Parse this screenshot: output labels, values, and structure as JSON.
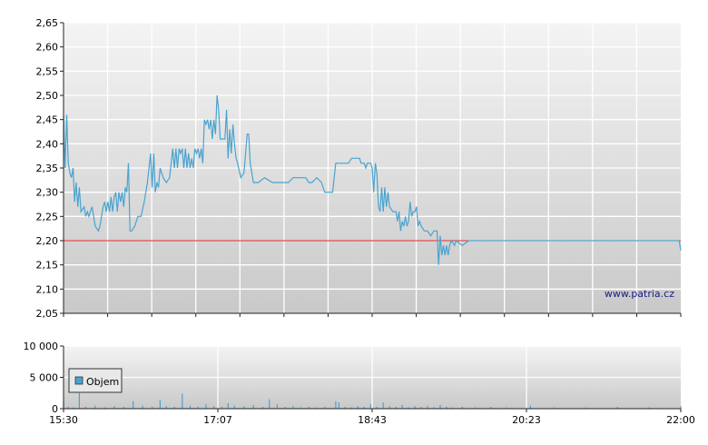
{
  "watermark": "www.patria.cz",
  "chart_data": [
    {
      "type": "line",
      "title": "",
      "xlabel": "",
      "ylabel": "",
      "ylim": [
        2.05,
        2.65
      ],
      "y_ticks": [
        "2,05",
        "2,10",
        "2,15",
        "2,20",
        "2,25",
        "2,30",
        "2,35",
        "2,40",
        "2,45",
        "2,50",
        "2,55",
        "2,60",
        "2,65"
      ],
      "reference_line": {
        "value": 2.2,
        "color": "#dd2222"
      },
      "colors": {
        "line": "#4aa3cf",
        "grid": "#ffffff",
        "bg_top": "#f2f2f2",
        "bg_bottom": "#c8c8c8"
      },
      "x_range": [
        "15:30",
        "22:00"
      ],
      "series": [
        {
          "points": [
            [
              "15:30",
              2.46
            ],
            [
              "15:31",
              2.35
            ],
            [
              "15:32",
              2.46
            ],
            [
              "15:33",
              2.36
            ],
            [
              "15:34",
              2.34
            ],
            [
              "15:35",
              2.33
            ],
            [
              "15:36",
              2.35
            ],
            [
              "15:37",
              2.28
            ],
            [
              "15:38",
              2.32
            ],
            [
              "15:39",
              2.27
            ],
            [
              "15:40",
              2.31
            ],
            [
              "15:41",
              2.26
            ],
            [
              "15:43",
              2.27
            ],
            [
              "15:44",
              2.25
            ],
            [
              "15:45",
              2.26
            ],
            [
              "15:46",
              2.25
            ],
            [
              "15:48",
              2.27
            ],
            [
              "15:50",
              2.23
            ],
            [
              "15:52",
              2.22
            ],
            [
              "15:53",
              2.23
            ],
            [
              "15:55",
              2.27
            ],
            [
              "15:56",
              2.28
            ],
            [
              "15:57",
              2.26
            ],
            [
              "15:58",
              2.28
            ],
            [
              "15:59",
              2.26
            ],
            [
              "16:00",
              2.29
            ],
            [
              "16:01",
              2.26
            ],
            [
              "16:02",
              2.29
            ],
            [
              "16:03",
              2.3
            ],
            [
              "16:04",
              2.26
            ],
            [
              "16:05",
              2.3
            ],
            [
              "16:06",
              2.28
            ],
            [
              "16:07",
              2.3
            ],
            [
              "16:08",
              2.27
            ],
            [
              "16:09",
              2.31
            ],
            [
              "16:10",
              2.3
            ],
            [
              "16:11",
              2.36
            ],
            [
              "16:12",
              2.22
            ],
            [
              "16:13",
              2.22
            ],
            [
              "16:15",
              2.23
            ],
            [
              "16:17",
              2.25
            ],
            [
              "16:19",
              2.25
            ],
            [
              "16:21",
              2.28
            ],
            [
              "16:23",
              2.32
            ],
            [
              "16:25",
              2.38
            ],
            [
              "16:26",
              2.31
            ],
            [
              "16:27",
              2.38
            ],
            [
              "16:28",
              2.3
            ],
            [
              "16:29",
              2.32
            ],
            [
              "16:30",
              2.31
            ],
            [
              "16:31",
              2.35
            ],
            [
              "16:33",
              2.33
            ],
            [
              "16:35",
              2.32
            ],
            [
              "16:37",
              2.33
            ],
            [
              "16:38",
              2.36
            ],
            [
              "16:39",
              2.39
            ],
            [
              "16:40",
              2.35
            ],
            [
              "16:41",
              2.39
            ],
            [
              "16:42",
              2.35
            ],
            [
              "16:43",
              2.39
            ],
            [
              "16:44",
              2.38
            ],
            [
              "16:45",
              2.39
            ],
            [
              "16:46",
              2.35
            ],
            [
              "16:47",
              2.39
            ],
            [
              "16:48",
              2.35
            ],
            [
              "16:49",
              2.38
            ],
            [
              "16:50",
              2.35
            ],
            [
              "16:51",
              2.37
            ],
            [
              "16:52",
              2.35
            ],
            [
              "16:53",
              2.39
            ],
            [
              "16:54",
              2.38
            ],
            [
              "16:55",
              2.39
            ],
            [
              "16:56",
              2.37
            ],
            [
              "16:57",
              2.39
            ],
            [
              "16:58",
              2.36
            ],
            [
              "16:59",
              2.45
            ],
            [
              "17:00",
              2.44
            ],
            [
              "17:01",
              2.45
            ],
            [
              "17:02",
              2.43
            ],
            [
              "17:03",
              2.45
            ],
            [
              "17:04",
              2.41
            ],
            [
              "17:05",
              2.45
            ],
            [
              "17:06",
              2.42
            ],
            [
              "17:07",
              2.5
            ],
            [
              "17:08",
              2.47
            ],
            [
              "17:09",
              2.41
            ],
            [
              "17:10",
              2.41
            ],
            [
              "17:11",
              2.41
            ],
            [
              "17:12",
              2.41
            ],
            [
              "17:13",
              2.47
            ],
            [
              "17:14",
              2.37
            ],
            [
              "17:15",
              2.43
            ],
            [
              "17:16",
              2.38
            ],
            [
              "17:17",
              2.44
            ],
            [
              "17:18",
              2.4
            ],
            [
              "17:19",
              2.37
            ],
            [
              "17:20",
              2.36
            ],
            [
              "17:22",
              2.33
            ],
            [
              "17:24",
              2.34
            ],
            [
              "17:26",
              2.42
            ],
            [
              "17:27",
              2.42
            ],
            [
              "17:28",
              2.36
            ],
            [
              "17:30",
              2.32
            ],
            [
              "17:33",
              2.32
            ],
            [
              "17:37",
              2.33
            ],
            [
              "17:42",
              2.32
            ],
            [
              "17:48",
              2.32
            ],
            [
              "17:52",
              2.32
            ],
            [
              "17:55",
              2.33
            ],
            [
              "18:03",
              2.33
            ],
            [
              "18:05",
              2.32
            ],
            [
              "18:07",
              2.32
            ],
            [
              "18:10",
              2.33
            ],
            [
              "18:13",
              2.32
            ],
            [
              "18:15",
              2.3
            ],
            [
              "18:17",
              2.3
            ],
            [
              "18:20",
              2.3
            ],
            [
              "18:22",
              2.36
            ],
            [
              "18:30",
              2.36
            ],
            [
              "18:32",
              2.37
            ],
            [
              "18:37",
              2.37
            ],
            [
              "18:38",
              2.36
            ],
            [
              "18:40",
              2.36
            ],
            [
              "18:41",
              2.35
            ],
            [
              "18:42",
              2.36
            ],
            [
              "18:44",
              2.36
            ],
            [
              "18:45",
              2.35
            ],
            [
              "18:46",
              2.3
            ],
            [
              "18:47",
              2.36
            ],
            [
              "18:48",
              2.34
            ],
            [
              "18:49",
              2.27
            ],
            [
              "18:50",
              2.26
            ],
            [
              "18:51",
              2.31
            ],
            [
              "18:52",
              2.26
            ],
            [
              "18:53",
              2.31
            ],
            [
              "18:54",
              2.27
            ],
            [
              "18:55",
              2.3
            ],
            [
              "18:56",
              2.27
            ],
            [
              "18:58",
              2.26
            ],
            [
              "19:00",
              2.26
            ],
            [
              "19:01",
              2.24
            ],
            [
              "19:02",
              2.26
            ],
            [
              "19:03",
              2.22
            ],
            [
              "19:04",
              2.24
            ],
            [
              "19:05",
              2.23
            ],
            [
              "19:06",
              2.25
            ],
            [
              "19:07",
              2.23
            ],
            [
              "19:08",
              2.24
            ],
            [
              "19:09",
              2.28
            ],
            [
              "19:10",
              2.25
            ],
            [
              "19:11",
              2.26
            ],
            [
              "19:12",
              2.26
            ],
            [
              "19:13",
              2.27
            ],
            [
              "19:14",
              2.23
            ],
            [
              "19:15",
              2.24
            ],
            [
              "19:16",
              2.23
            ],
            [
              "19:18",
              2.22
            ],
            [
              "19:20",
              2.22
            ],
            [
              "19:22",
              2.21
            ],
            [
              "19:24",
              2.22
            ],
            [
              "19:26",
              2.22
            ],
            [
              "19:27",
              2.15
            ],
            [
              "19:28",
              2.21
            ],
            [
              "19:29",
              2.17
            ],
            [
              "19:30",
              2.19
            ],
            [
              "19:31",
              2.17
            ],
            [
              "19:32",
              2.19
            ],
            [
              "19:33",
              2.17
            ],
            [
              "19:34",
              2.19
            ],
            [
              "19:35",
              2.2
            ],
            [
              "19:37",
              2.19
            ],
            [
              "19:38",
              2.2
            ],
            [
              "19:42",
              2.19
            ],
            [
              "19:46",
              2.2
            ],
            [
              "20:00",
              2.2
            ],
            [
              "21:59",
              2.2
            ],
            [
              "22:00",
              2.18
            ]
          ]
        }
      ]
    },
    {
      "type": "bar",
      "title": "",
      "xlabel": "",
      "ylabel": "",
      "ylim": [
        0,
        10000
      ],
      "y_ticks": [
        "0",
        "5 000",
        "10 000"
      ],
      "x_ticks": [
        "15:30",
        "17:07",
        "18:43",
        "20:23",
        "22:00"
      ],
      "legend": {
        "label": "Objem",
        "placement": "top-left",
        "swatch_color": "#4aa3cf"
      },
      "series": [
        {
          "name": "Objem",
          "color": "#4aa3cf",
          "points": [
            [
              "15:30",
              1200
            ],
            [
              "15:33",
              300
            ],
            [
              "15:36",
              200
            ],
            [
              "15:40",
              2500
            ],
            [
              "15:44",
              300
            ],
            [
              "15:50",
              500
            ],
            [
              "15:56",
              200
            ],
            [
              "16:02",
              400
            ],
            [
              "16:08",
              300
            ],
            [
              "16:14",
              1200
            ],
            [
              "16:20",
              500
            ],
            [
              "16:26",
              300
            ],
            [
              "16:31",
              1400
            ],
            [
              "16:35",
              400
            ],
            [
              "16:40",
              300
            ],
            [
              "16:45",
              2400
            ],
            [
              "16:50",
              500
            ],
            [
              "16:55",
              300
            ],
            [
              "17:00",
              700
            ],
            [
              "17:05",
              400
            ],
            [
              "17:10",
              300
            ],
            [
              "17:14",
              900
            ],
            [
              "17:18",
              500
            ],
            [
              "17:24",
              400
            ],
            [
              "17:30",
              600
            ],
            [
              "17:36",
              300
            ],
            [
              "17:40",
              1500
            ],
            [
              "17:45",
              700
            ],
            [
              "17:50",
              300
            ],
            [
              "17:55",
              400
            ],
            [
              "18:00",
              200
            ],
            [
              "18:05",
              300
            ],
            [
              "18:10",
              200
            ],
            [
              "18:15",
              300
            ],
            [
              "18:22",
              1200
            ],
            [
              "18:24",
              1000
            ],
            [
              "18:28",
              300
            ],
            [
              "18:32",
              200
            ],
            [
              "18:36",
              400
            ],
            [
              "18:40",
              300
            ],
            [
              "18:44",
              700
            ],
            [
              "18:48",
              300
            ],
            [
              "18:52",
              1000
            ],
            [
              "18:56",
              400
            ],
            [
              "19:00",
              300
            ],
            [
              "19:04",
              600
            ],
            [
              "19:08",
              200
            ],
            [
              "19:12",
              400
            ],
            [
              "19:16",
              300
            ],
            [
              "19:20",
              500
            ],
            [
              "19:24",
              200
            ],
            [
              "19:28",
              600
            ],
            [
              "19:32",
              300
            ],
            [
              "19:36",
              200
            ],
            [
              "19:42",
              300
            ],
            [
              "19:50",
              200
            ],
            [
              "20:00",
              300
            ],
            [
              "20:10",
              200
            ],
            [
              "20:25",
              500
            ],
            [
              "20:40",
              200
            ],
            [
              "21:00",
              200
            ],
            [
              "21:20",
              300
            ],
            [
              "21:40",
              200
            ],
            [
              "22:00",
              400
            ]
          ]
        }
      ]
    }
  ]
}
